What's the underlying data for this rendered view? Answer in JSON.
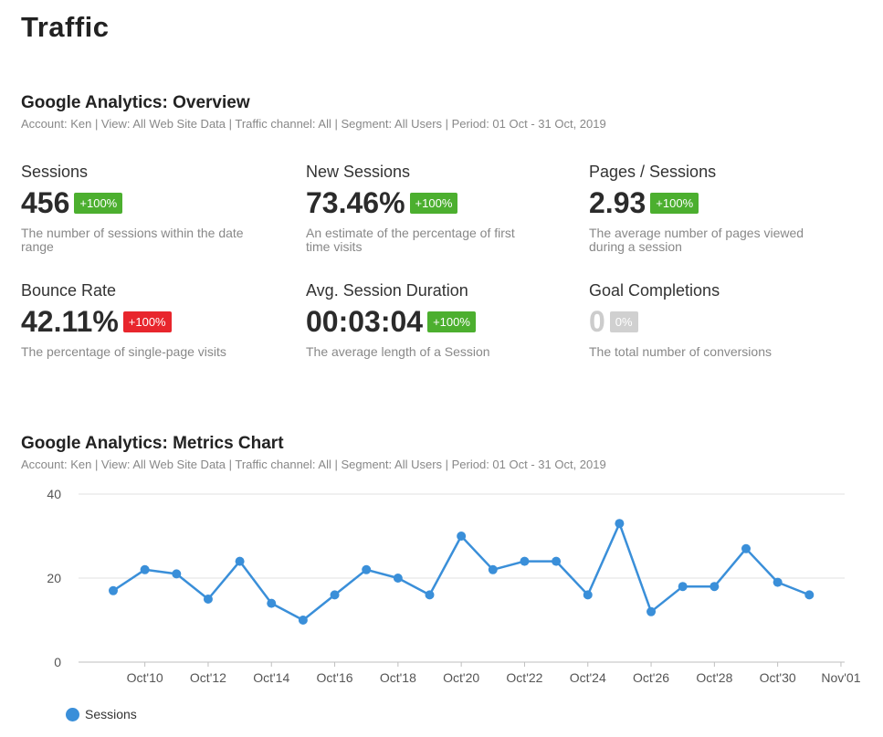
{
  "page": {
    "title": "Traffic"
  },
  "overview": {
    "title": "Google Analytics: Overview",
    "subtitle": "Account: Ken | View: All Web Site Data | Traffic channel: All | Segment: All Users | Period: 01 Oct - 31 Oct, 2019",
    "metrics": [
      {
        "label": "Sessions",
        "value": "456",
        "badge": "+100%",
        "badge_color": "#4caf2f",
        "description": "The number of sessions within the date range"
      },
      {
        "label": "New Sessions",
        "value": "73.46%",
        "badge": "+100%",
        "badge_color": "#4caf2f",
        "description": "An estimate of the percentage of first time visits"
      },
      {
        "label": "Pages / Sessions",
        "value": "2.93",
        "badge": "+100%",
        "badge_color": "#4caf2f",
        "description": "The average number of pages viewed during a session"
      },
      {
        "label": "Bounce Rate",
        "value": "42.11%",
        "badge": "+100%",
        "badge_color": "#e8262d",
        "description": "The percentage of single-page visits"
      },
      {
        "label": "Avg. Session Duration",
        "value": "00:03:04",
        "badge": "+100%",
        "badge_color": "#4caf2f",
        "description": "The average length of a Session"
      },
      {
        "label": "Goal Completions",
        "value": "0",
        "badge": "0%",
        "badge_color": "#d0d0d0",
        "description": "The total number of conversions"
      }
    ]
  },
  "metrics_chart": {
    "title": "Google Analytics: Metrics Chart",
    "subtitle": "Account: Ken | View: All Web Site Data | Traffic channel: All | Segment: All Users | Period: 01 Oct - 31 Oct, 2019"
  },
  "chart_data": {
    "type": "line",
    "x": [
      "Oct'09",
      "Oct'10",
      "Oct'11",
      "Oct'12",
      "Oct'13",
      "Oct'14",
      "Oct'15",
      "Oct'16",
      "Oct'17",
      "Oct'18",
      "Oct'19",
      "Oct'20",
      "Oct'21",
      "Oct'22",
      "Oct'23",
      "Oct'24",
      "Oct'25",
      "Oct'26",
      "Oct'27",
      "Oct'28",
      "Oct'29",
      "Oct'30",
      "Oct'31"
    ],
    "x_tick_labels": [
      "Oct'10",
      "Oct'12",
      "Oct'14",
      "Oct'16",
      "Oct'18",
      "Oct'20",
      "Oct'22",
      "Oct'24",
      "Oct'26",
      "Oct'28",
      "Oct'30",
      "Nov'01"
    ],
    "series": [
      {
        "name": "Sessions",
        "color": "#3a8fd9",
        "values": [
          17,
          22,
          21,
          15,
          24,
          14,
          10,
          16,
          22,
          20,
          16,
          30,
          22,
          24,
          24,
          16,
          33,
          12,
          18,
          18,
          27,
          19,
          16
        ]
      }
    ],
    "ylim": [
      0,
      40
    ],
    "y_ticks": [
      0,
      20,
      40
    ],
    "grid": true,
    "legend_position": "bottom-left"
  }
}
